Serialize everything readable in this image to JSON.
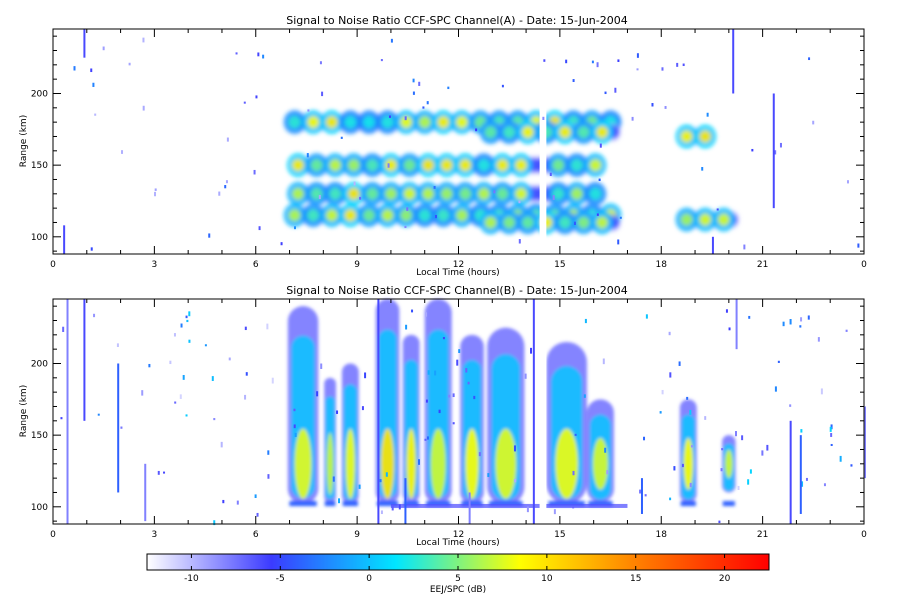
{
  "chart_data": [
    {
      "type": "heatmap",
      "title": "Signal to Noise Ratio CCF-SPC Channel(A) - Date: 15-Jun-2004",
      "xlabel": "Local Time (hours)",
      "ylabel": "Range (km)",
      "xlim": [
        0,
        24
      ],
      "ylim": [
        88,
        245
      ],
      "x_ticks": [
        "0",
        "3",
        "6",
        "9",
        "12",
        "15",
        "18",
        "21",
        "0"
      ],
      "y_ticks": [
        "100",
        "150",
        "200"
      ],
      "echo_layers": [
        {
          "range_km": 180,
          "t_start": 6.9,
          "t_end": 16.8
        },
        {
          "range_km": 173,
          "t_start": 12.7,
          "t_end": 16.8
        },
        {
          "range_km": 150,
          "t_start": 7.0,
          "t_end": 16.3
        },
        {
          "range_km": 130,
          "t_start": 7.0,
          "t_end": 16.3
        },
        {
          "range_km": 115,
          "t_start": 6.9,
          "t_end": 16.8
        },
        {
          "range_km": 110,
          "t_start": 12.7,
          "t_end": 16.8
        },
        {
          "range_km": 170,
          "t_start": 18.5,
          "t_end": 19.6
        },
        {
          "range_km": 112,
          "t_start": 18.5,
          "t_end": 20.3
        }
      ],
      "data_gap_hours": [
        14.4,
        14.6
      ]
    },
    {
      "type": "heatmap",
      "title": "Signal to Noise Ratio CCF-SPC Channel(B) - Date: 15-Jun-2004",
      "xlabel": "Local Time (hours)",
      "ylabel": "Range (km)",
      "xlim": [
        0,
        24
      ],
      "ylim": [
        88,
        245
      ],
      "x_ticks": [
        "0",
        "3",
        "6",
        "9",
        "12",
        "15",
        "18",
        "21",
        "0"
      ],
      "y_ticks": [
        "100",
        "150",
        "200"
      ],
      "echo_columns": [
        {
          "t_center": 7.4,
          "t_width": 0.9,
          "range_low": 102,
          "range_high": 240
        },
        {
          "t_center": 8.2,
          "t_width": 0.35,
          "range_low": 103,
          "range_high": 190
        },
        {
          "t_center": 8.8,
          "t_width": 0.5,
          "range_low": 102,
          "range_high": 200
        },
        {
          "t_center": 9.9,
          "t_width": 0.7,
          "range_low": 102,
          "range_high": 245
        },
        {
          "t_center": 10.6,
          "t_width": 0.5,
          "range_low": 103,
          "range_high": 220
        },
        {
          "t_center": 11.4,
          "t_width": 0.8,
          "range_low": 102,
          "range_high": 245
        },
        {
          "t_center": 12.4,
          "t_width": 0.7,
          "range_low": 102,
          "range_high": 220
        },
        {
          "t_center": 13.4,
          "t_width": 1.1,
          "range_low": 101,
          "range_high": 225
        },
        {
          "t_center": 15.2,
          "t_width": 1.2,
          "range_low": 102,
          "range_high": 215
        },
        {
          "t_center": 16.2,
          "t_width": 0.8,
          "range_low": 103,
          "range_high": 175
        },
        {
          "t_center": 18.8,
          "t_width": 0.5,
          "range_low": 103,
          "range_high": 175
        },
        {
          "t_center": 20.0,
          "t_width": 0.4,
          "range_low": 110,
          "range_high": 150
        }
      ],
      "data_gap_hours": [
        14.4,
        14.6
      ]
    }
  ],
  "colorbar": {
    "label": "EEJ/SPC (dB)",
    "range": [
      -12.5,
      22.5
    ],
    "ticks": [
      "-10",
      "-5",
      "0",
      "5",
      "10",
      "15",
      "20"
    ],
    "colors": [
      "#ffffff",
      "#3b3bff",
      "#00e6ff",
      "#ffff00",
      "#ff7800",
      "#ff0000"
    ]
  }
}
